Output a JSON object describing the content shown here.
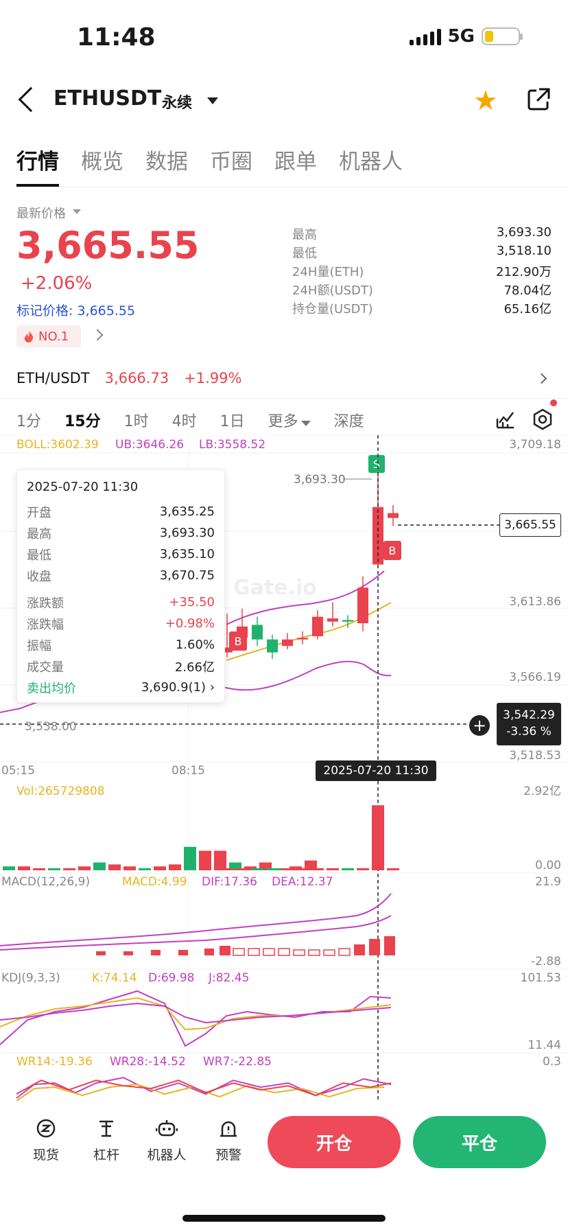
{
  "status": {
    "time": "11:48",
    "network": "5G"
  },
  "header": {
    "symbol": "ETHUSDT",
    "contract_type": "永续"
  },
  "tabs": [
    {
      "label": "行情",
      "active": true
    },
    {
      "label": "概览",
      "active": false
    },
    {
      "label": "数据",
      "active": false
    },
    {
      "label": "币圈",
      "active": false
    },
    {
      "label": "跟单",
      "active": false
    },
    {
      "label": "机器人",
      "active": false
    }
  ],
  "ticker": {
    "last_price_label": "最新价格",
    "last_price": "3,665.55",
    "change_pct": "+2.06%",
    "mark_price": "标记价格: 3,665.55",
    "rank_badge": "NO.1",
    "stats": [
      {
        "label": "最高",
        "value": "3,693.30"
      },
      {
        "label": "最低",
        "value": "3,518.10"
      },
      {
        "label": "24H量(ETH)",
        "value": "212.90万"
      },
      {
        "label": "24H额(USDT)",
        "value": "78.04亿"
      },
      {
        "label": "持仓量(USDT)",
        "value": "65.16亿"
      }
    ]
  },
  "spot": {
    "pair": "ETH/USDT",
    "price": "3,666.73",
    "change": "+1.99%"
  },
  "timeframes": {
    "items": [
      {
        "label": "1分",
        "active": false
      },
      {
        "label": "15分",
        "active": true
      },
      {
        "label": "1时",
        "active": false
      },
      {
        "label": "4时",
        "active": false
      },
      {
        "label": "1日",
        "active": false
      }
    ],
    "more": "更多",
    "depth": "深度"
  },
  "chart_labels": {
    "boll": "BOLL:3602.39",
    "ub": "UB:3646.26",
    "lb": "LB:3558.52",
    "y_ticks": [
      "3,709.18",
      "3,613.86",
      "3,566.19",
      "3,518.53"
    ],
    "high_marker": "3,693.30",
    "low_marker": "3,538.00",
    "current_price_tag": "3,665.55",
    "crosshair_price": "3,542.29",
    "crosshair_pct": "-3.36 %",
    "x_ticks": [
      "05:15",
      "08:15"
    ],
    "crosshair_time": "2025-07-20 11:30",
    "watermark": "Gate.io",
    "sell_marker": "S",
    "buy_marker": "B",
    "vol_label": "Vol:265729808",
    "vol_max": "2.92亿",
    "vol_min": "0.00",
    "macd_label": "MACD(12,26,9)",
    "macd_val": "MACD:4.99",
    "dif": "DIF:17.36",
    "dea": "DEA:12.37",
    "macd_max": "21.9",
    "macd_min": "-2.88",
    "kdj_label": "KDJ(9,3,3)",
    "k": "K:74.14",
    "d": "D:69.98",
    "j": "J:82.45",
    "kdj_max": "101.53",
    "kdj_min": "11.44",
    "wr14": "WR14:-19.36",
    "wr28": "WR28:-14.52",
    "wr7": "WR7:-22.85",
    "wr_max": "0.3"
  },
  "tooltip": {
    "date": "2025-07-20 11:30",
    "rows": [
      {
        "k": "开盘",
        "v": "3,635.25"
      },
      {
        "k": "最高",
        "v": "3,693.30"
      },
      {
        "k": "最低",
        "v": "3,635.10"
      },
      {
        "k": "收盘",
        "v": "3,670.75"
      }
    ],
    "rows2": [
      {
        "k": "涨跌额",
        "v": "+35.50"
      },
      {
        "k": "涨跌幅",
        "v": "+0.98%"
      },
      {
        "k": "振幅",
        "v": "1.60%"
      },
      {
        "k": "成交量",
        "v": "2.66亿"
      },
      {
        "k": "卖出均价",
        "v": "3,690.9(1)"
      }
    ]
  },
  "bottom_nav": {
    "items": [
      {
        "label": "现货",
        "icon": "spot-icon"
      },
      {
        "label": "杠杆",
        "icon": "leverage-icon"
      },
      {
        "label": "机器人",
        "icon": "robot-icon"
      },
      {
        "label": "预警",
        "icon": "alert-icon"
      }
    ],
    "open_label": "开仓",
    "close_label": "平仓"
  },
  "colors": {
    "up": "#e8434e",
    "down": "#20b26c",
    "star": "#f5a800"
  },
  "chart_data": {
    "type": "candlestick",
    "interval": "15分",
    "ylim": [
      3518.53,
      3709.18
    ],
    "candles": [
      {
        "o": 3581,
        "c": 3584,
        "h": 3605,
        "l": 3578
      },
      {
        "o": 3590,
        "c": 3597,
        "h": 3608,
        "l": 3585
      },
      {
        "o": 3598,
        "c": 3589,
        "h": 3603,
        "l": 3585
      },
      {
        "o": 3589,
        "c": 3581,
        "h": 3592,
        "l": 3577
      },
      {
        "o": 3585,
        "c": 3589,
        "h": 3593,
        "l": 3583
      },
      {
        "o": 3589,
        "c": 3590,
        "h": 3594,
        "l": 3586
      },
      {
        "o": 3591,
        "c": 3603,
        "h": 3607,
        "l": 3589
      },
      {
        "o": 3600,
        "c": 3602,
        "h": 3612,
        "l": 3597
      },
      {
        "o": 3601,
        "c": 3600,
        "h": 3604,
        "l": 3596
      },
      {
        "o": 3599,
        "c": 3621,
        "h": 3628,
        "l": 3594
      },
      {
        "o": 3635.25,
        "c": 3670.75,
        "h": 3693.3,
        "l": 3635.1
      },
      {
        "o": 3664,
        "c": 3667,
        "h": 3672,
        "l": 3659
      }
    ],
    "volume": [
      0.02,
      0.02,
      0.01,
      0.01,
      0.01,
      0.04,
      0.03,
      0.02,
      0.05,
      0.04,
      2.66,
      0.08
    ],
    "volume_unit": "亿"
  }
}
